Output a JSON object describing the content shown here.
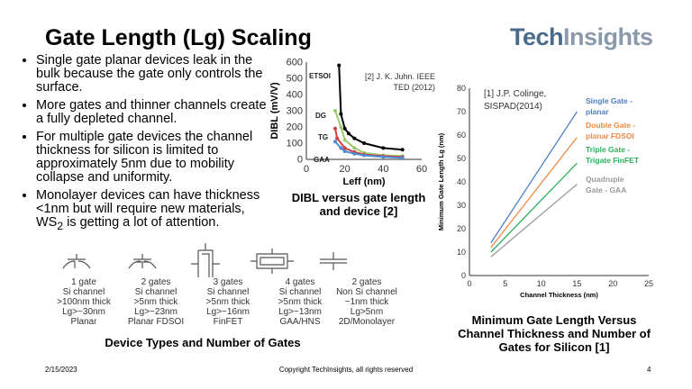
{
  "title": "Gate Length (Lg) Scaling",
  "logo": {
    "part1": "Tech",
    "part2": "Insights"
  },
  "bullets": [
    "Single gate planar devices leak in the bulk because the gate only controls the surface.",
    "More gates and thinner channels create a fully depleted channel.",
    "For multiple gate devices the channel thickness for silicon is limited to approximately 5nm due to mobility collapse and uniformity.",
    "Monolayer devices can have thickness <1nm but will require new materials, WS2 is getting a lot of attention."
  ],
  "devices": [
    {
      "lines": [
        "1 gate",
        "Si channel",
        ">100nm thick",
        "Lg>~30nm",
        "Planar"
      ],
      "icon": "planar-transistor-icon"
    },
    {
      "lines": [
        "2 gates",
        "Si channel",
        ">5nm thick",
        "Lg>~23nm",
        "Planar FDSOI"
      ],
      "icon": "fdsoi-transistor-icon"
    },
    {
      "lines": [
        "3 gates",
        "Si channel",
        ">5nm thick",
        "Lg>~16nm",
        "FinFET"
      ],
      "icon": "finfet-transistor-icon"
    },
    {
      "lines": [
        "4 gates",
        "Si channel",
        ">5nm thick",
        "Lg>~13nm",
        "GAA/HNS"
      ],
      "icon": "gaa-transistor-icon"
    },
    {
      "lines": [
        "2 gates",
        "Non Si channel",
        "~1nm thick",
        "Lg>5nm",
        "2D/Monolayer"
      ],
      "icon": "monolayer-transistor-icon"
    }
  ],
  "devices_caption": "Device Types and Number of Gates",
  "chart_data": [
    {
      "type": "line",
      "title": "",
      "xlabel": "Leff (nm)",
      "ylabel": "DIBL (mV/V)",
      "xlim": [
        0,
        60
      ],
      "ylim": [
        0,
        600
      ],
      "xticks": [
        0,
        20,
        40,
        60
      ],
      "yticks": [
        0,
        100,
        200,
        300,
        400,
        500,
        600
      ],
      "annotation": "[2] J. K. Juhn. IEEE TED (2012)",
      "caption": "DIBL versus gate length and device [2]",
      "series": [
        {
          "name": "ETSOI",
          "color": "#000000",
          "x": [
            17,
            18,
            20,
            22,
            25,
            30,
            40,
            50
          ],
          "y": [
            580,
            280,
            190,
            160,
            130,
            100,
            70,
            60
          ]
        },
        {
          "name": "DG",
          "color": "#9acd6a",
          "x": [
            15,
            18,
            20,
            25,
            30,
            40,
            50
          ],
          "y": [
            300,
            200,
            120,
            70,
            40,
            25,
            20
          ]
        },
        {
          "name": "TG",
          "color": "#d04040",
          "x": [
            15,
            16,
            20,
            25,
            30,
            40,
            50
          ],
          "y": [
            190,
            130,
            70,
            45,
            30,
            20,
            15
          ]
        },
        {
          "name": "GAA",
          "color": "#4a8ad0",
          "x": [
            15,
            18,
            20,
            25,
            30,
            40,
            50
          ],
          "y": [
            110,
            70,
            50,
            35,
            25,
            15,
            10
          ]
        }
      ]
    },
    {
      "type": "line",
      "title": "",
      "xlabel": "Channel Thickness (nm)",
      "ylabel": "Minimum Gate Length Lg (nm)",
      "xlim": [
        0,
        25
      ],
      "ylim": [
        0,
        80
      ],
      "xticks": [
        0,
        5,
        10,
        15,
        20,
        25
      ],
      "yticks": [
        0,
        10,
        20,
        30,
        40,
        50,
        60,
        70,
        80
      ],
      "annotation": "[1] J.P. Colinge, SISPAD(2014)",
      "caption": "Minimum Gate Length Versus Channel Thickness and Number of Gates for Silicon [1]",
      "series": [
        {
          "name": "Single Gate - planar",
          "color": "#4f7ec4",
          "x": [
            3,
            15
          ],
          "y": [
            14,
            70
          ]
        },
        {
          "name": "Double Gate - planar FDSOI",
          "color": "#ee8a44",
          "x": [
            3,
            15
          ],
          "y": [
            12,
            59
          ]
        },
        {
          "name": "Triple Gate - Trigate FinFET",
          "color": "#2aae5a",
          "x": [
            3,
            15
          ],
          "y": [
            10,
            48
          ]
        },
        {
          "name": "Quadruple Gate - GAA",
          "color": "#999999",
          "x": [
            3,
            15
          ],
          "y": [
            8,
            39
          ]
        }
      ]
    }
  ],
  "footer": {
    "date": "2/15/2023",
    "copyright": "Copyright TechInsights, all rights reserved",
    "page": "4"
  }
}
